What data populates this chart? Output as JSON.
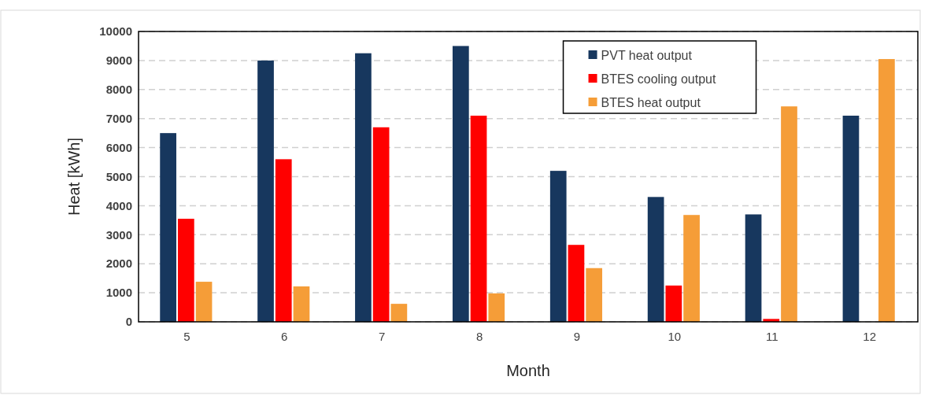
{
  "chart_data": {
    "type": "bar",
    "xlabel": "Month",
    "ylabel": "Heat [kWh]",
    "categories": [
      "5",
      "6",
      "7",
      "8",
      "9",
      "10",
      "11",
      "12"
    ],
    "series": [
      {
        "name": "PVT heat output",
        "color": "#17375e",
        "values": [
          6500,
          9000,
          9250,
          9500,
          5200,
          4300,
          3700,
          7100
        ]
      },
      {
        "name": "BTES cooling output",
        "color": "#ff0000",
        "values": [
          3550,
          5600,
          6700,
          7100,
          2650,
          1250,
          100,
          0
        ]
      },
      {
        "name": "BTES heat output",
        "color": "#f59d38",
        "values": [
          1380,
          1220,
          620,
          980,
          1850,
          3680,
          7420,
          9050
        ]
      }
    ],
    "ylim": [
      0,
      10000
    ],
    "yticks": [
      0,
      1000,
      2000,
      3000,
      4000,
      5000,
      6000,
      7000,
      8000,
      9000,
      10000
    ],
    "grid": "y",
    "legend": "top right"
  }
}
